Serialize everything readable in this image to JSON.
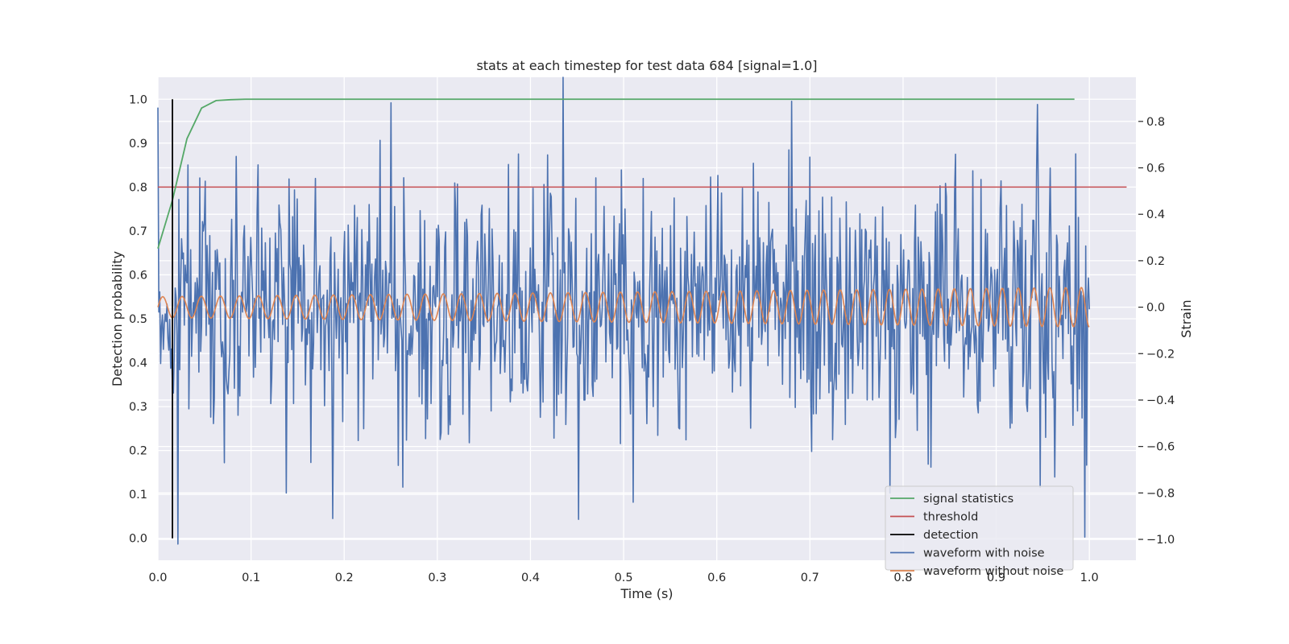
{
  "chart_data": {
    "type": "line",
    "title": "stats at each timestep for test data 684 [signal=1.0]",
    "xlabel": "Time (s)",
    "ylabel": "Detection probability",
    "y2label": "Strain",
    "xlim": [
      0.0,
      1.05
    ],
    "ylim": [
      -0.05,
      1.05
    ],
    "y2lim": [
      -1.09,
      0.99
    ],
    "xticks": [
      "0.0",
      "0.1",
      "0.2",
      "0.3",
      "0.4",
      "0.5",
      "0.6",
      "0.7",
      "0.8",
      "0.9",
      "1.0"
    ],
    "yticks": [
      "0.0",
      "0.1",
      "0.2",
      "0.3",
      "0.4",
      "0.5",
      "0.6",
      "0.7",
      "0.8",
      "0.9",
      "1.0"
    ],
    "y2ticks": [
      "−1.0",
      "−0.8",
      "−0.6",
      "−0.4",
      "−0.2",
      "0.0",
      "0.2",
      "0.4",
      "0.6",
      "0.8"
    ],
    "grid": true,
    "legend_position": "lower-right",
    "colors": {
      "signal": "#55a868",
      "threshold": "#c44e52",
      "detection": "#000000",
      "noisy": "#4c72b0",
      "clean": "#dd8452",
      "background": "#eaeaf2"
    },
    "legend": [
      "signal statistics",
      "threshold",
      "detection",
      "waveform with noise",
      "waveform without noise"
    ],
    "signal_statistics": {
      "x": [
        0.0,
        0.0156,
        0.0312,
        0.0469,
        0.0625,
        0.0781,
        0.0938,
        0.1094,
        0.125,
        0.15,
        0.2,
        0.3,
        0.4,
        0.5,
        0.6,
        0.7,
        0.8,
        0.9,
        0.984
      ],
      "y": [
        0.66,
        0.77,
        0.91,
        0.98,
        0.997,
        0.999,
        1.0,
        1.0,
        1.0,
        1.0,
        1.0,
        1.0,
        1.0,
        1.0,
        1.0,
        1.0,
        1.0,
        1.0,
        1.0
      ]
    },
    "threshold": {
      "x": [
        0.0,
        1.04
      ],
      "y": 0.8
    },
    "detection": {
      "x": 0.0156,
      "y": [
        0.0,
        1.0
      ]
    },
    "waveform_without_noise": {
      "x_start": 0.0,
      "x_end": 1.0,
      "cycles": 48,
      "amplitude_start": 0.045,
      "amplitude_end": 0.085
    },
    "waveform_with_noise": {
      "x_start": 0.0,
      "x_end": 1.0,
      "samples": 1024,
      "noise_std": 0.27,
      "peaks": [
        {
          "x": 0.0215,
          "y": -1.02
        },
        {
          "x": 0.25,
          "y": 0.88
        },
        {
          "x": 0.435,
          "y": 0.99
        },
        {
          "x": 0.188,
          "y": -0.91
        },
        {
          "x": 0.138,
          "y": -0.8
        },
        {
          "x": 0.51,
          "y": -0.84
        },
        {
          "x": 0.786,
          "y": -0.8
        },
        {
          "x": 0.995,
          "y": -0.99
        },
        {
          "x": 0.985,
          "y": 0.66
        }
      ]
    }
  }
}
